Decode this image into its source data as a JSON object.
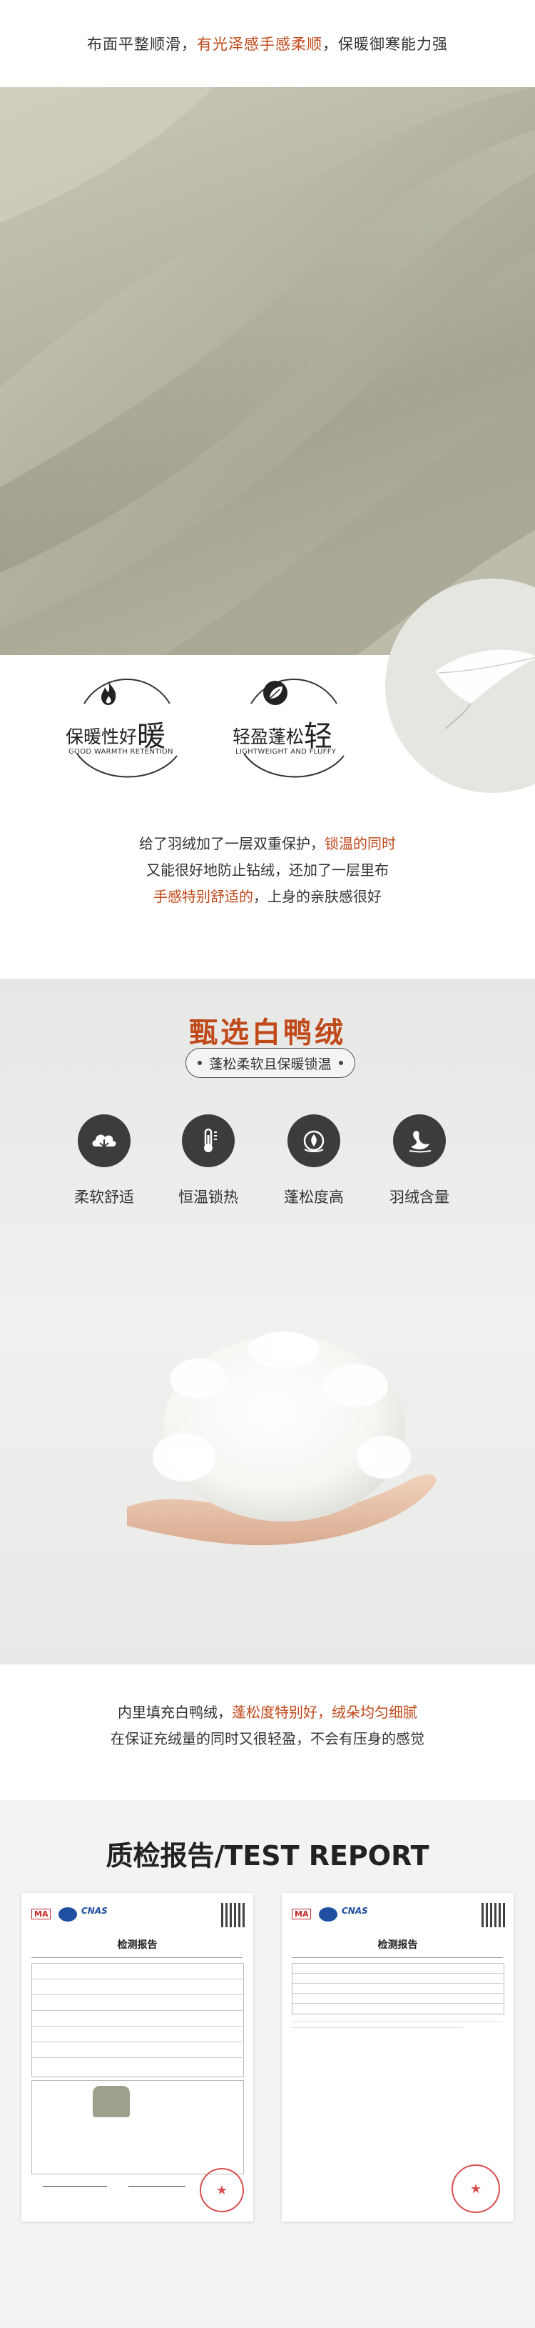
{
  "section1": {
    "caption": {
      "part1": "布面平整顺滑，",
      "highlight": "有光泽感手感柔顺",
      "part2": "，保暖御寒能力强"
    },
    "badges": [
      {
        "icon": "flame-icon",
        "title_small": "保暖性好",
        "title_big": "暖",
        "subtitle": "GOOD WARMTH RETENTION"
      },
      {
        "icon": "leaf-icon",
        "title_small": "轻盈蓬松",
        "title_big": "轻",
        "subtitle": "LIGHTWEIGHT AND FLUFFY"
      }
    ],
    "paragraph": {
      "line1_a": "给了羽绒加了一层双重保护，",
      "line1_hl": "锁温的同时",
      "line2": "又能很好地防止钻绒，还加了一层里布",
      "line3_hl": "手感特别舒适的",
      "line3_b": "，上身的亲肤感很好"
    }
  },
  "section2": {
    "title": "甄选白鸭绒",
    "pill": "蓬松柔软且保暖锁温",
    "features": [
      {
        "icon": "cloud-icon",
        "label": "柔软舒适"
      },
      {
        "icon": "thermometer-icon",
        "label": "恒温锁热"
      },
      {
        "icon": "fluffy-ball-icon",
        "label": "蓬松度高"
      },
      {
        "icon": "swan-icon",
        "label": "羽绒含量"
      }
    ],
    "paragraph": {
      "line1_a": "内里填充白鸭绒，",
      "line1_hl": "蓬松度特别好，绒朵均匀细腻",
      "line2": "在保证充绒量的同时又很轻盈，不会有压身的感觉"
    }
  },
  "section3": {
    "title": "质检报告/TEST REPORT",
    "doc_title": "检测报告",
    "logo_ma": "MA",
    "logo_cnas": "CNAS"
  },
  "colors": {
    "accent": "#c0491a",
    "fabric": "#b7b6a3",
    "icon_circle": "#3c3c3c"
  }
}
